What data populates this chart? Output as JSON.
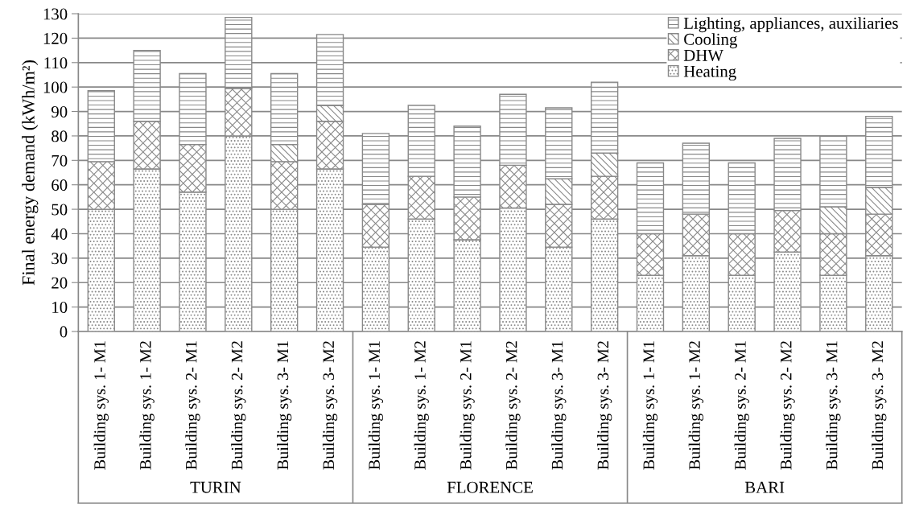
{
  "chart_data": {
    "type": "bar",
    "stacked": true,
    "ylabel": "Final energy demand (kWh/m²)",
    "categories": [
      "Building sys. 1- M1",
      "Building sys. 1- M2",
      "Building sys. 2- M1",
      "Building sys. 2- M2",
      "Building sys. 3- M1",
      "Building sys. 3- M2",
      "Building sys. 1- M1",
      "Building sys. 1- M2",
      "Building sys. 2- M1",
      "Building sys. 2- M2",
      "Building sys. 3- M1",
      "Building sys. 3- M2",
      "Building sys. 1- M1",
      "Building sys. 1- M2",
      "Building sys. 2- M1",
      "Building sys. 2- M2",
      "Building sys. 3- M1",
      "Building sys. 3- M2"
    ],
    "series": [
      {
        "name": "Heating",
        "color": "#888888",
        "values": [
          50,
          66.5,
          57,
          80,
          50,
          66.5,
          34.5,
          46,
          37.5,
          50.5,
          34.5,
          46,
          23,
          31,
          23,
          32.5,
          23,
          31
        ]
      },
      {
        "name": "DHW",
        "color": "#888888",
        "values": [
          19.5,
          19.5,
          19.5,
          19.5,
          19.5,
          19.5,
          17.5,
          17.5,
          17.5,
          17.5,
          17.5,
          17.5,
          17,
          17,
          17,
          17,
          17,
          17
        ]
      },
      {
        "name": "Cooling",
        "color": "#888888",
        "values": [
          null,
          null,
          null,
          null,
          7,
          6.5,
          null,
          null,
          null,
          null,
          10.5,
          9.5,
          null,
          null,
          null,
          null,
          11,
          11
        ]
      },
      {
        "name": "Lighting, appliances, auxiliaries",
        "color": "#888888",
        "values": [
          29,
          29,
          29,
          29,
          29,
          29,
          29,
          29,
          29,
          29,
          29,
          29,
          29,
          29,
          29,
          29.5,
          29,
          29
        ]
      }
    ],
    "ylim": [
      0,
      130
    ],
    "yticks": [
      0,
      10,
      20,
      30,
      40,
      50,
      60,
      70,
      80,
      90,
      100,
      110,
      120,
      130
    ],
    "grid": "y",
    "legend": "top right",
    "annotations": [
      "TURIN",
      "FLORENCE",
      "BARI"
    ]
  }
}
